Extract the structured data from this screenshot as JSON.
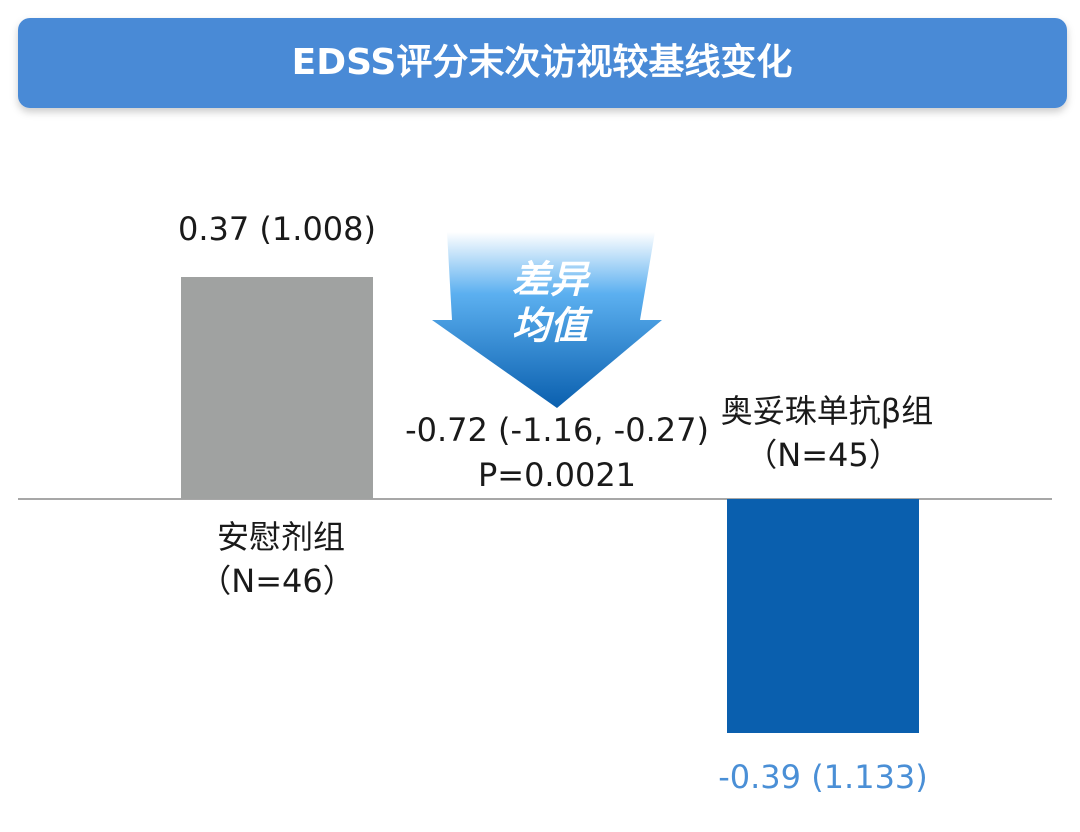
{
  "chart_data": {
    "type": "bar",
    "title": "EDSS评分末次访视较基线变化",
    "categories": [
      "安慰剂组",
      "奥妥珠单抗β组"
    ],
    "category_notes": [
      "（N=46）",
      "（N=45）"
    ],
    "values": [
      0.37,
      -0.39
    ],
    "value_labels": [
      "0.37 (1.008)",
      "-0.39 (1.133)"
    ],
    "colors": [
      "#a0a2a1",
      "#0a5fae"
    ],
    "value_label_colors": [
      "#1a1a1a",
      "#4a8fd6"
    ],
    "ylim": [
      -0.5,
      0.5
    ],
    "annotations": {
      "arrow_text": [
        "差异",
        "均值"
      ],
      "difference": "-0.72 (-1.16, -0.27)",
      "p_value": "P=0.0021"
    }
  }
}
